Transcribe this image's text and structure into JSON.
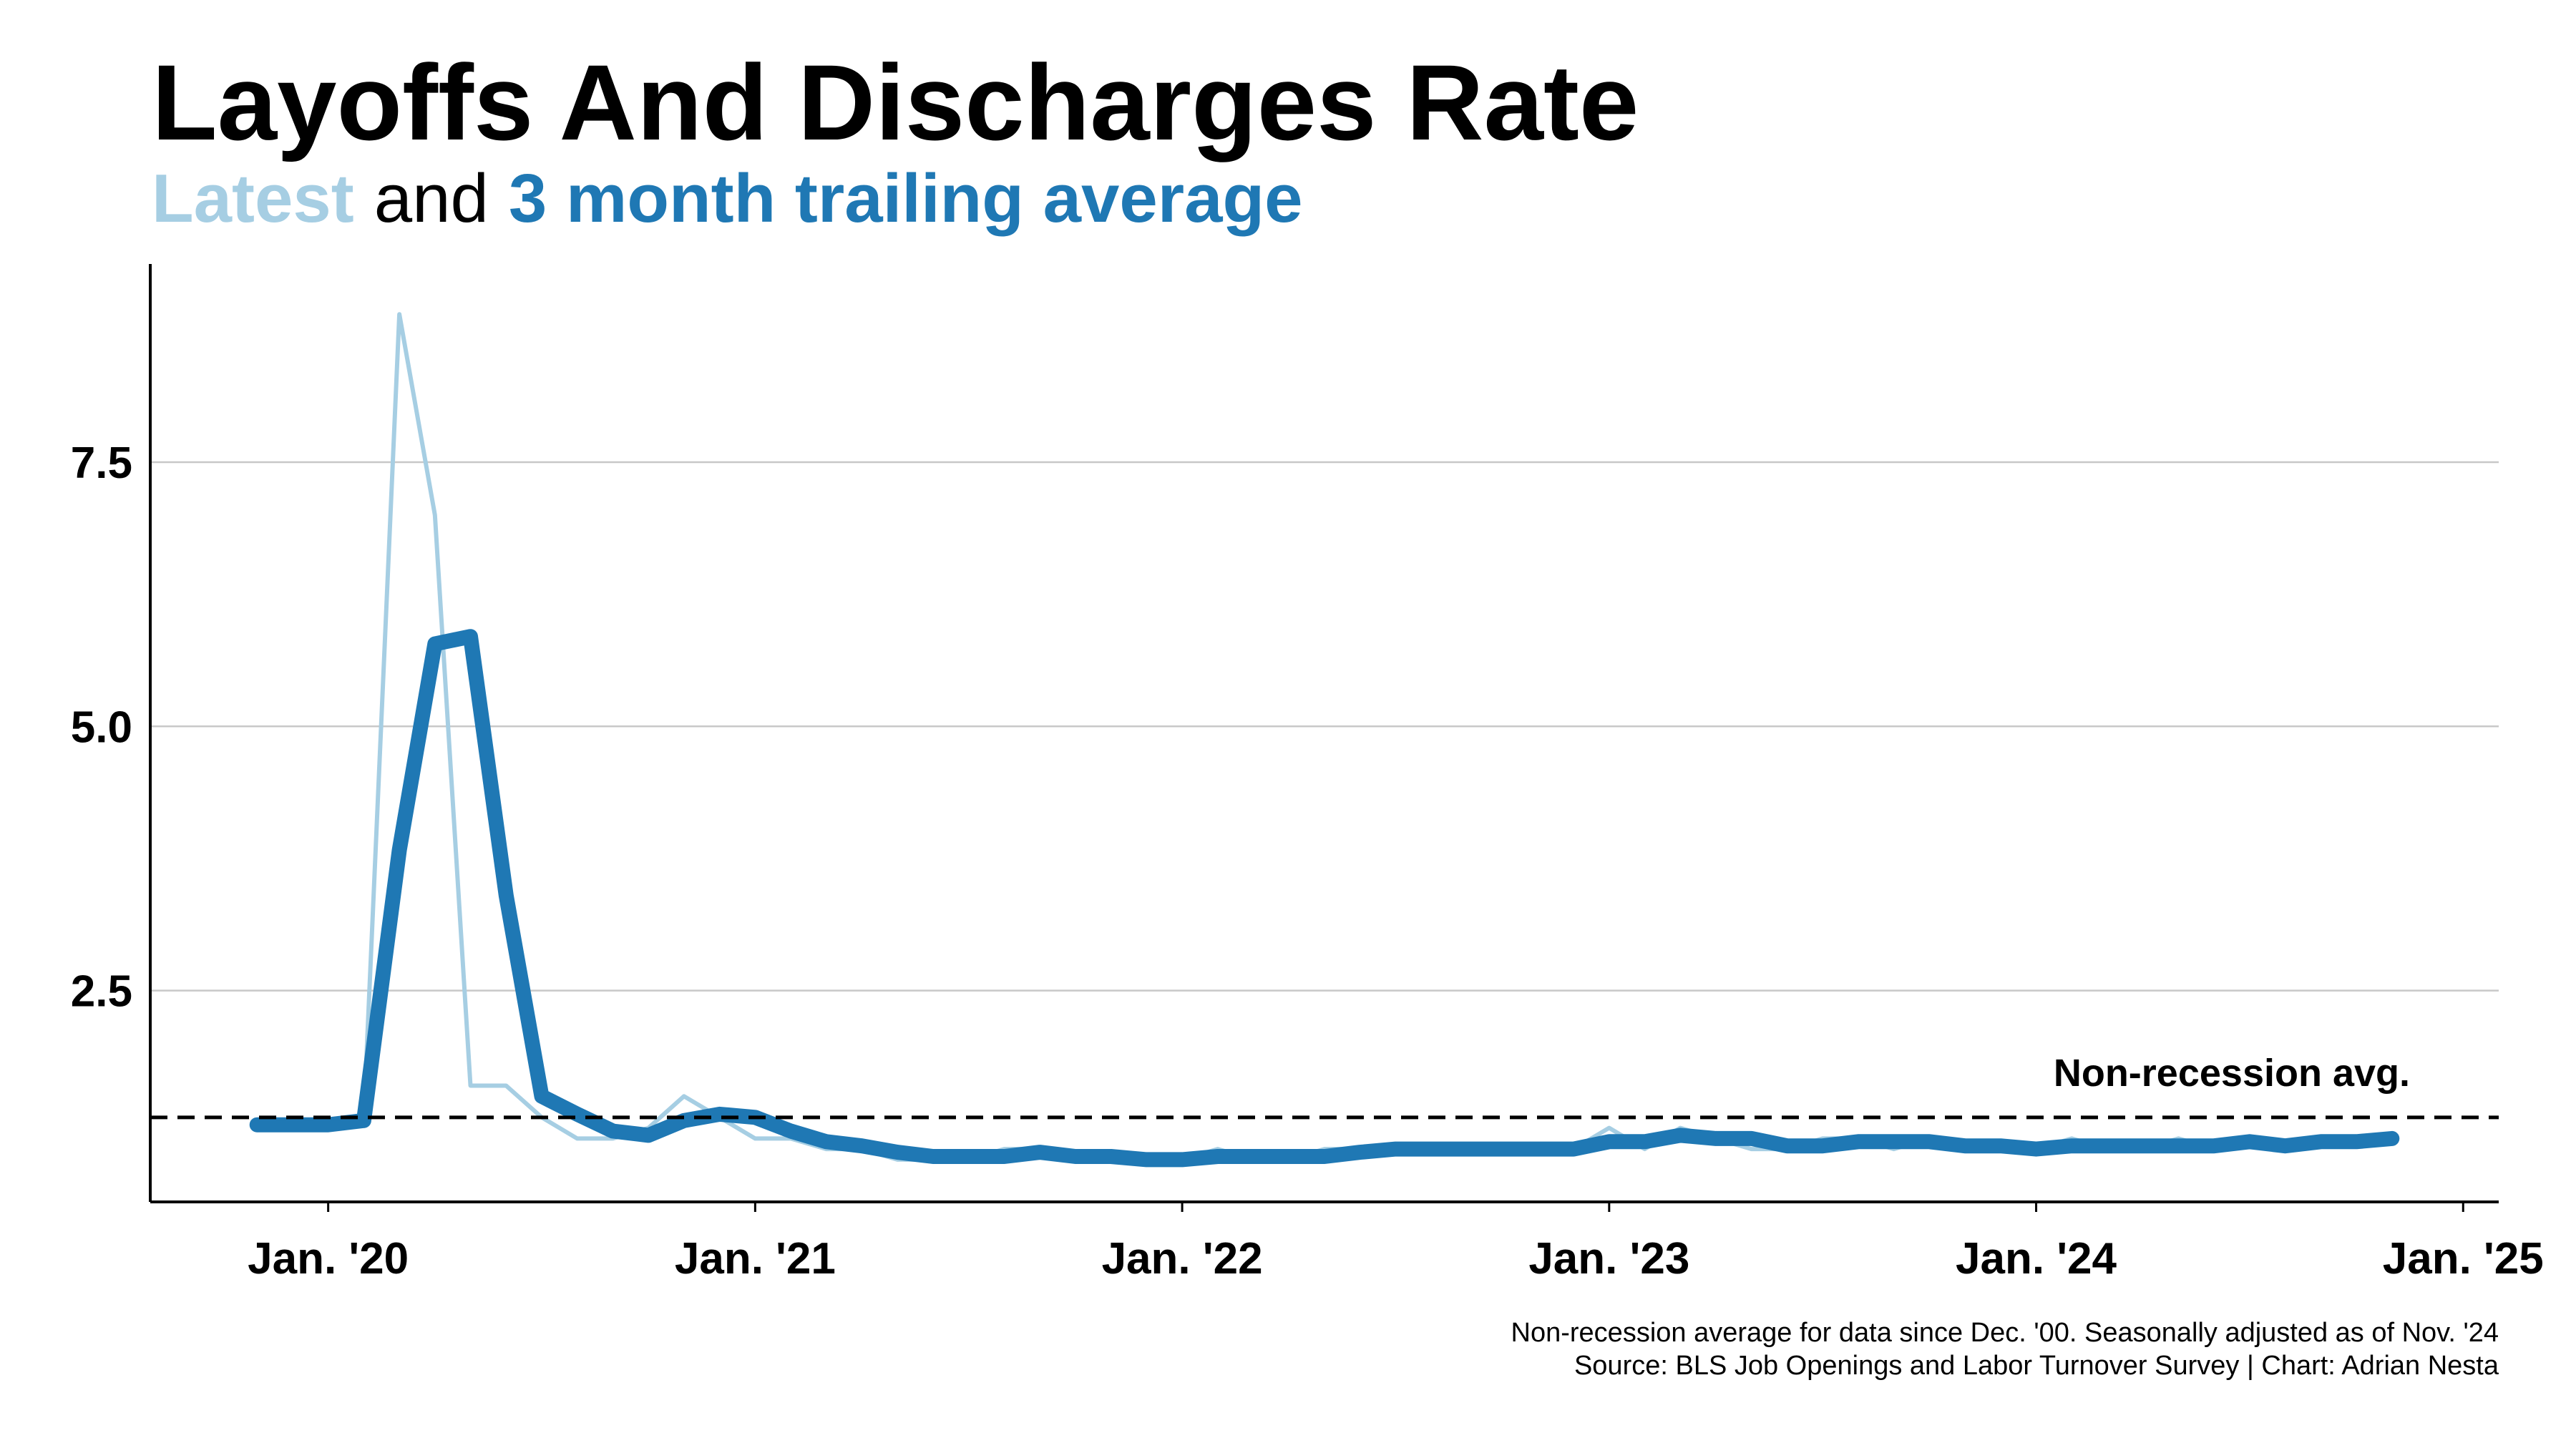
{
  "chart_data": {
    "type": "line",
    "title": "Layoffs And Discharges Rate",
    "subtitle_join": "and",
    "x": [
      "2019-11",
      "2019-12",
      "2020-01",
      "2020-02",
      "2020-03",
      "2020-04",
      "2020-05",
      "2020-06",
      "2020-07",
      "2020-08",
      "2020-09",
      "2020-10",
      "2020-11",
      "2020-12",
      "2021-01",
      "2021-02",
      "2021-03",
      "2021-04",
      "2021-05",
      "2021-06",
      "2021-07",
      "2021-08",
      "2021-09",
      "2021-10",
      "2021-11",
      "2021-12",
      "2022-01",
      "2022-02",
      "2022-03",
      "2022-04",
      "2022-05",
      "2022-06",
      "2022-07",
      "2022-08",
      "2022-09",
      "2022-10",
      "2022-11",
      "2022-12",
      "2023-01",
      "2023-02",
      "2023-03",
      "2023-04",
      "2023-05",
      "2023-06",
      "2023-07",
      "2023-08",
      "2023-09",
      "2023-10",
      "2023-11",
      "2023-12",
      "2024-01",
      "2024-02",
      "2024-03",
      "2024-04",
      "2024-05",
      "2024-06",
      "2024-07",
      "2024-08",
      "2024-09",
      "2024-10",
      "2024-11"
    ],
    "series": [
      {
        "name": "Latest",
        "color": "#a6cee3",
        "values": [
          1.2,
          1.2,
          1.2,
          1.3,
          8.9,
          7.0,
          1.6,
          1.6,
          1.3,
          1.1,
          1.1,
          1.2,
          1.5,
          1.3,
          1.1,
          1.1,
          1.0,
          1.0,
          0.9,
          0.9,
          0.9,
          1.0,
          1.0,
          0.9,
          0.9,
          0.9,
          0.9,
          1.0,
          0.9,
          0.9,
          1.0,
          1.0,
          1.0,
          1.0,
          1.0,
          1.0,
          1.0,
          1.0,
          1.2,
          1.0,
          1.2,
          1.1,
          1.0,
          1.0,
          1.1,
          1.1,
          1.0,
          1.1,
          1.0,
          1.0,
          1.0,
          1.1,
          1.0,
          1.0,
          1.1,
          1.0,
          1.1,
          1.0,
          1.1,
          1.1,
          1.1
        ]
      },
      {
        "name": "3 month trailing average",
        "color": "#1f78b4",
        "values": [
          1.23,
          1.23,
          1.23,
          1.27,
          3.83,
          5.78,
          5.85,
          3.4,
          1.5,
          1.33,
          1.17,
          1.13,
          1.27,
          1.33,
          1.3,
          1.17,
          1.07,
          1.03,
          0.97,
          0.93,
          0.93,
          0.93,
          0.97,
          0.93,
          0.93,
          0.9,
          0.9,
          0.93,
          0.93,
          0.93,
          0.93,
          0.97,
          1.0,
          1.0,
          1.0,
          1.0,
          1.0,
          1.0,
          1.07,
          1.07,
          1.13,
          1.1,
          1.1,
          1.03,
          1.03,
          1.07,
          1.07,
          1.07,
          1.03,
          1.03,
          1.0,
          1.03,
          1.03,
          1.03,
          1.03,
          1.03,
          1.07,
          1.03,
          1.07,
          1.07,
          1.1
        ]
      }
    ],
    "reference_line": {
      "value": 1.3,
      "label": "Non-recession avg."
    },
    "xlim": [
      "2019-08",
      "2025-02"
    ],
    "xticks": [
      {
        "value": "2020-01",
        "label": "Jan. '20"
      },
      {
        "value": "2021-01",
        "label": "Jan. '21"
      },
      {
        "value": "2022-01",
        "label": "Jan. '22"
      },
      {
        "value": "2023-01",
        "label": "Jan. '23"
      },
      {
        "value": "2024-01",
        "label": "Jan. '24"
      },
      {
        "value": "2025-01",
        "label": "Jan. '25"
      }
    ],
    "ylim": [
      0.5,
      9.375
    ],
    "yticks": [
      2.5,
      {
        "value": 5,
        "label": "5.0"
      },
      7.5
    ],
    "grid": true,
    "notes": [
      "Non-recession average for data since Dec. '00. Seasonally adjusted as of Nov. '24",
      "Source: BLS Job Openings and Labor Turnover Survey | Chart: Adrian Nesta"
    ]
  }
}
